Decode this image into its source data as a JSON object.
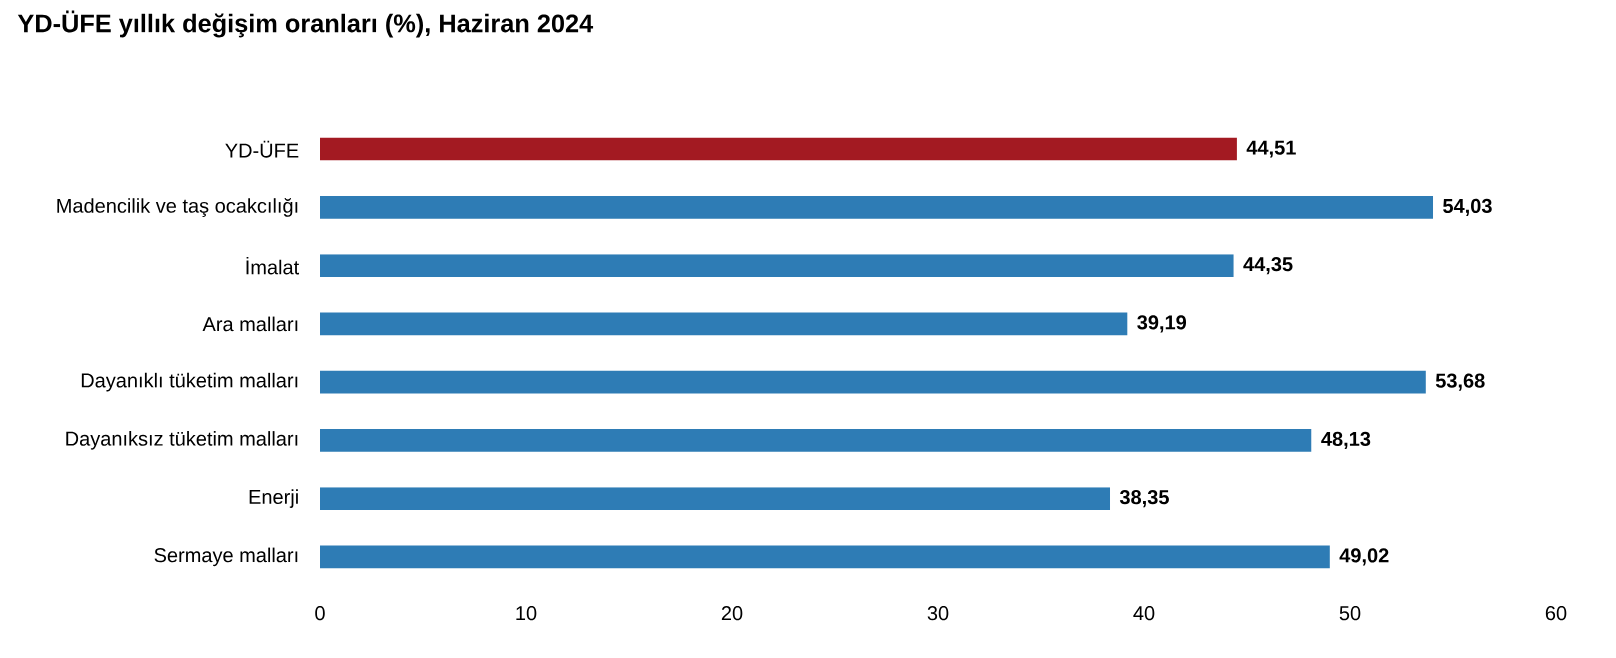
{
  "chart_data": {
    "type": "bar",
    "orientation": "horizontal",
    "title": "YD-ÜFE yıllık değişim oranları (%), Haziran 2024",
    "categories": [
      "YD-ÜFE",
      "Madencilik ve taş ocakcılığı",
      "İmalat",
      "Ara malları",
      "Dayanıklı tüketim malları",
      "Dayanıksız tüketim malları",
      "Enerji",
      "Sermaye malları"
    ],
    "values": [
      44.51,
      54.03,
      44.35,
      39.19,
      53.68,
      48.13,
      38.35,
      49.02
    ],
    "value_labels": [
      "44,51",
      "54,03",
      "44,35",
      "39,19",
      "53,68",
      "48,13",
      "38,35",
      "49,02"
    ],
    "colors": [
      "#a31a22",
      "#2e7cb5",
      "#2e7cb5",
      "#2e7cb5",
      "#2e7cb5",
      "#2e7cb5",
      "#2e7cb5",
      "#2e7cb5"
    ],
    "xlim": [
      0,
      60
    ],
    "xticks": [
      0,
      10,
      20,
      30,
      40,
      50,
      60
    ],
    "grid": false
  }
}
